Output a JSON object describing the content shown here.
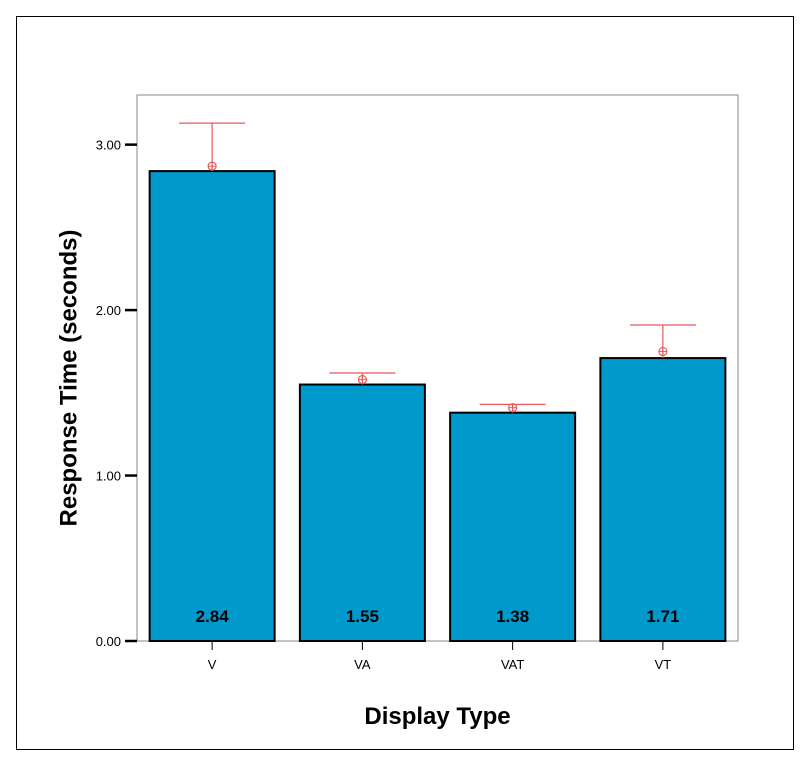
{
  "chart_data": {
    "type": "bar",
    "xlabel": "Display Type",
    "ylabel": "Response Time (seconds)",
    "categories": [
      "V",
      "VA",
      "VAT",
      "VT"
    ],
    "values": [
      2.84,
      1.55,
      1.38,
      1.71
    ],
    "value_labels": [
      "2.84",
      "1.55",
      "1.38",
      "1.71"
    ],
    "markers": [
      2.87,
      1.58,
      1.41,
      1.75
    ],
    "error_upper": [
      3.13,
      1.62,
      1.43,
      1.91
    ],
    "ylim": [
      0,
      3.3
    ],
    "yticks": [
      0,
      1,
      2,
      3
    ],
    "ytick_labels": [
      "0.00",
      "1.00",
      "2.00",
      "3.00"
    ],
    "grid": false,
    "colors": {
      "bar": "#0099CC",
      "error": "#E8585A"
    }
  }
}
